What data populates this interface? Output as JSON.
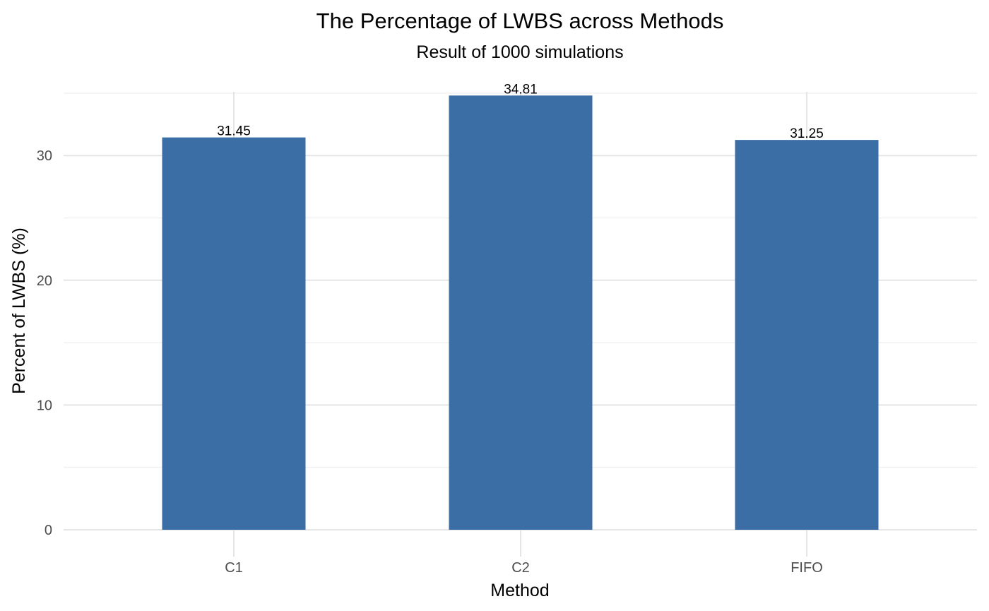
{
  "chart_data": {
    "type": "bar",
    "title": "The Percentage of LWBS across Methods",
    "subtitle": "Result of 1000 simulations",
    "xlabel": "Method",
    "ylabel": "Percent of LWBS (%)",
    "categories": [
      "C1",
      "C2",
      "FIFO"
    ],
    "values": [
      31.45,
      34.81,
      31.25
    ],
    "data_labels": [
      "31.45",
      "34.81",
      "31.25"
    ],
    "y_ticks": [
      0,
      10,
      20,
      30
    ],
    "y_tick_labels": [
      "0",
      "10",
      "20",
      "30"
    ],
    "y_minor_ticks": [
      5,
      15,
      25,
      35
    ],
    "ylim": [
      0,
      36.5
    ],
    "grid": true,
    "legend": "none",
    "bar_color": "#3a6ea5",
    "grid_color": "#e5e5e5",
    "background_color": "#ffffff"
  }
}
